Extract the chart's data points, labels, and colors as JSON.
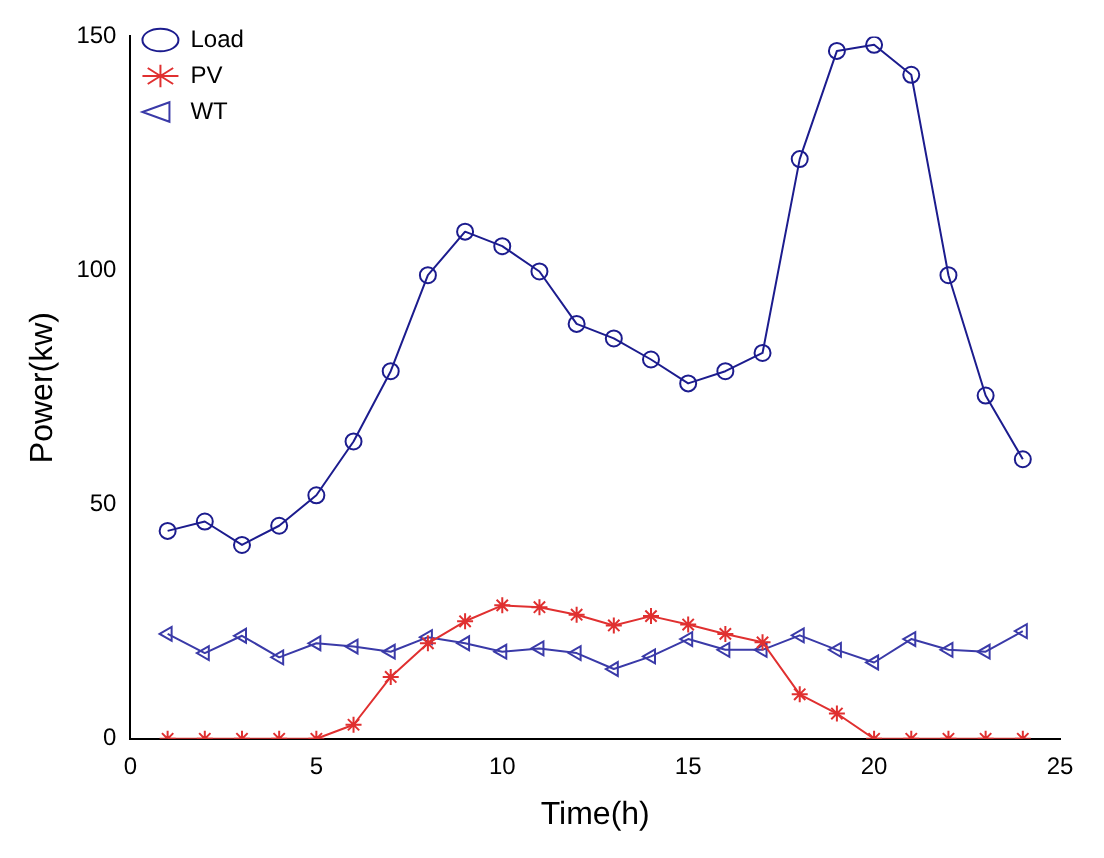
{
  "chart_data": {
    "type": "line",
    "xlabel": "Time(h)",
    "ylabel": "Power(kw)",
    "x": [
      1,
      2,
      3,
      4,
      5,
      6,
      7,
      8,
      9,
      10,
      11,
      12,
      13,
      14,
      15,
      16,
      17,
      18,
      19,
      20,
      21,
      22,
      23,
      24
    ],
    "series": [
      {
        "name": "Load",
        "color": "#1c1c8e",
        "marker": "circle",
        "values": [
          44.4,
          46.4,
          41.4,
          45.5,
          52,
          63.5,
          78.5,
          99,
          108.3,
          105.2,
          99.8,
          88.6,
          85.5,
          81,
          75.9,
          78.5,
          82.4,
          123.8,
          146.9,
          148.2,
          141.8,
          99,
          73.3,
          59.7
        ]
      },
      {
        "name": "PV",
        "color": "#e03030",
        "marker": "cross",
        "values": [
          0,
          0,
          0,
          0,
          0,
          3,
          13.2,
          20.4,
          25.1,
          28.5,
          28.1,
          26.5,
          24.2,
          26.2,
          24.4,
          22.4,
          20.6,
          9.5,
          5.4,
          0,
          0,
          0,
          0,
          0
        ]
      },
      {
        "name": "WT",
        "color": "#3a3aa8",
        "marker": "triangle",
        "values": [
          22.4,
          18.3,
          22,
          17.4,
          20.4,
          19.7,
          18.6,
          21.7,
          20.4,
          18.6,
          19.3,
          18.3,
          14.9,
          17.6,
          21.3,
          19,
          19,
          22.1,
          19,
          16.3,
          21.3,
          19,
          18.6,
          23
        ]
      }
    ],
    "xlim": [
      0,
      25
    ],
    "xticks": [
      0,
      5,
      10,
      15,
      20,
      25
    ],
    "ylim": [
      0,
      150
    ],
    "yticks": [
      0,
      50,
      100,
      150
    ],
    "grid": false,
    "legend": "top left",
    "line_style": "solid"
  }
}
